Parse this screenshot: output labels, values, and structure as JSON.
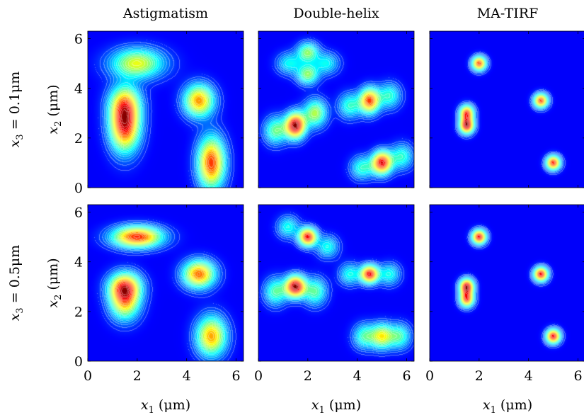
{
  "chart_data": {
    "type": "heatmap",
    "colormap": "jet",
    "grid": false,
    "columns": [
      "Astigmatism",
      "Double-helix",
      "MA-TIRF"
    ],
    "rows": [
      {
        "label_var": "x",
        "label_sub": "3",
        "label_value": " = 0.1μm"
      },
      {
        "label_var": "x",
        "label_sub": "3",
        "label_value": " = 0.5μm"
      }
    ],
    "xlabel": {
      "var": "x",
      "sub": "1",
      "unit": " (μm)"
    },
    "ylabel": {
      "var": "x",
      "sub": "2",
      "unit": " (μm)"
    },
    "xlim": [
      0,
      6.3
    ],
    "ylim": [
      0,
      6.3
    ],
    "xticks": [
      "0",
      "2",
      "4",
      "6"
    ],
    "yticks": [
      "0",
      "2",
      "4",
      "6"
    ],
    "emitters": [
      {
        "x": 1.5,
        "y": 2.5
      },
      {
        "x": 1.5,
        "y": 3.0
      },
      {
        "x": 2.0,
        "y": 5.0
      },
      {
        "x": 4.5,
        "y": 3.5
      },
      {
        "x": 5.0,
        "y": 1.0
      }
    ],
    "panels": [
      {
        "row": 0,
        "col": 0,
        "blobs": [
          {
            "x": 2.0,
            "y": 5.0,
            "sx": 0.75,
            "sy": 0.42,
            "a": 0.62
          },
          {
            "x": 1.5,
            "y": 2.55,
            "sx": 0.42,
            "sy": 0.75,
            "a": 1.0
          },
          {
            "x": 1.5,
            "y": 3.45,
            "sx": 0.45,
            "sy": 0.5,
            "a": 0.42
          },
          {
            "x": 4.5,
            "y": 3.5,
            "sx": 0.42,
            "sy": 0.45,
            "a": 0.78
          },
          {
            "x": 5.0,
            "y": 1.0,
            "sx": 0.38,
            "sy": 0.72,
            "a": 0.9
          }
        ]
      },
      {
        "row": 0,
        "col": 1,
        "blobs": [
          {
            "x": 1.5,
            "y": 2.5,
            "sx": 0.28,
            "sy": 0.35,
            "a": 1.0
          },
          {
            "x": 2.3,
            "y": 3.0,
            "sx": 0.32,
            "sy": 0.38,
            "a": 0.5
          },
          {
            "x": 0.7,
            "y": 2.3,
            "sx": 0.32,
            "sy": 0.38,
            "a": 0.42
          },
          {
            "x": 2.0,
            "y": 5.45,
            "sx": 0.3,
            "sy": 0.28,
            "a": 0.45
          },
          {
            "x": 2.0,
            "y": 4.55,
            "sx": 0.3,
            "sy": 0.28,
            "a": 0.45
          },
          {
            "x": 1.25,
            "y": 5.0,
            "sx": 0.35,
            "sy": 0.3,
            "a": 0.3
          },
          {
            "x": 2.75,
            "y": 5.0,
            "sx": 0.35,
            "sy": 0.3,
            "a": 0.3
          },
          {
            "x": 4.5,
            "y": 3.5,
            "sx": 0.28,
            "sy": 0.35,
            "a": 0.8
          },
          {
            "x": 3.7,
            "y": 3.3,
            "sx": 0.32,
            "sy": 0.35,
            "a": 0.35
          },
          {
            "x": 5.3,
            "y": 3.7,
            "sx": 0.32,
            "sy": 0.35,
            "a": 0.35
          },
          {
            "x": 5.0,
            "y": 1.0,
            "sx": 0.28,
            "sy": 0.32,
            "a": 0.9
          },
          {
            "x": 4.2,
            "y": 0.8,
            "sx": 0.32,
            "sy": 0.32,
            "a": 0.35
          },
          {
            "x": 5.8,
            "y": 1.25,
            "sx": 0.32,
            "sy": 0.35,
            "a": 0.35
          }
        ]
      },
      {
        "row": 0,
        "col": 2,
        "blobs": [
          {
            "x": 2.0,
            "y": 5.0,
            "sx": 0.2,
            "sy": 0.2,
            "a": 0.85
          },
          {
            "x": 1.5,
            "y": 2.5,
            "sx": 0.2,
            "sy": 0.22,
            "a": 1.0
          },
          {
            "x": 1.5,
            "y": 3.0,
            "sx": 0.2,
            "sy": 0.22,
            "a": 0.85
          },
          {
            "x": 4.5,
            "y": 3.5,
            "sx": 0.2,
            "sy": 0.2,
            "a": 0.85
          },
          {
            "x": 5.0,
            "y": 1.0,
            "sx": 0.2,
            "sy": 0.2,
            "a": 0.9
          }
        ]
      },
      {
        "row": 1,
        "col": 0,
        "blobs": [
          {
            "x": 2.0,
            "y": 5.0,
            "sx": 0.7,
            "sy": 0.3,
            "a": 1.0
          },
          {
            "x": 1.5,
            "y": 3.0,
            "sx": 0.45,
            "sy": 0.4,
            "a": 0.85
          },
          {
            "x": 1.5,
            "y": 2.35,
            "sx": 0.42,
            "sy": 0.5,
            "a": 0.7
          },
          {
            "x": 4.5,
            "y": 3.5,
            "sx": 0.45,
            "sy": 0.38,
            "a": 0.9
          },
          {
            "x": 5.0,
            "y": 1.0,
            "sx": 0.42,
            "sy": 0.55,
            "a": 0.82
          }
        ]
      },
      {
        "row": 1,
        "col": 1,
        "blobs": [
          {
            "x": 1.5,
            "y": 3.0,
            "sx": 0.28,
            "sy": 0.3,
            "a": 1.0
          },
          {
            "x": 0.7,
            "y": 2.8,
            "sx": 0.32,
            "sy": 0.38,
            "a": 0.4
          },
          {
            "x": 2.3,
            "y": 2.8,
            "sx": 0.32,
            "sy": 0.38,
            "a": 0.4
          },
          {
            "x": 2.0,
            "y": 5.0,
            "sx": 0.25,
            "sy": 0.25,
            "a": 0.9
          },
          {
            "x": 1.2,
            "y": 5.4,
            "sx": 0.3,
            "sy": 0.3,
            "a": 0.32
          },
          {
            "x": 2.8,
            "y": 4.6,
            "sx": 0.3,
            "sy": 0.3,
            "a": 0.32
          },
          {
            "x": 4.5,
            "y": 3.5,
            "sx": 0.25,
            "sy": 0.25,
            "a": 0.9
          },
          {
            "x": 3.7,
            "y": 3.5,
            "sx": 0.3,
            "sy": 0.3,
            "a": 0.32
          },
          {
            "x": 5.3,
            "y": 3.5,
            "sx": 0.3,
            "sy": 0.3,
            "a": 0.32
          },
          {
            "x": 5.0,
            "y": 1.0,
            "sx": 0.3,
            "sy": 0.35,
            "a": 0.55
          },
          {
            "x": 4.3,
            "y": 1.0,
            "sx": 0.32,
            "sy": 0.35,
            "a": 0.38
          },
          {
            "x": 5.7,
            "y": 1.0,
            "sx": 0.32,
            "sy": 0.35,
            "a": 0.38
          }
        ]
      },
      {
        "row": 1,
        "col": 2,
        "blobs": [
          {
            "x": 2.0,
            "y": 5.0,
            "sx": 0.2,
            "sy": 0.2,
            "a": 0.9
          },
          {
            "x": 1.5,
            "y": 3.0,
            "sx": 0.2,
            "sy": 0.22,
            "a": 0.95
          },
          {
            "x": 1.5,
            "y": 2.5,
            "sx": 0.2,
            "sy": 0.22,
            "a": 0.8
          },
          {
            "x": 4.5,
            "y": 3.5,
            "sx": 0.2,
            "sy": 0.2,
            "a": 0.9
          },
          {
            "x": 5.0,
            "y": 1.0,
            "sx": 0.2,
            "sy": 0.2,
            "a": 0.9
          }
        ]
      }
    ]
  }
}
